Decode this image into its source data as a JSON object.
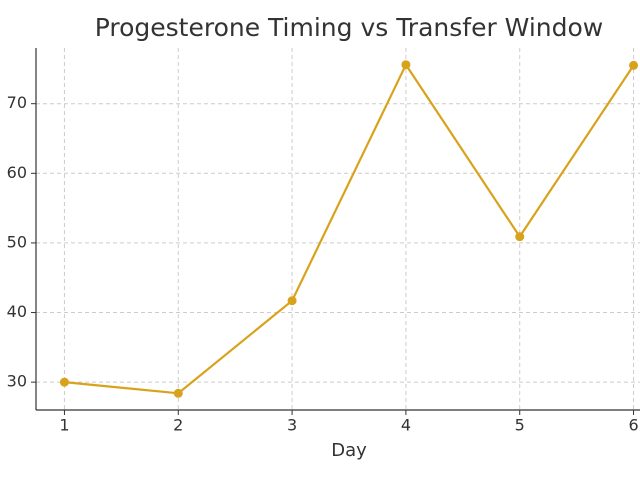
{
  "chart_data": {
    "type": "line",
    "title": "Progesterone Timing vs Transfer Window",
    "x_label": "Day",
    "x": [
      1,
      2,
      3,
      4,
      5,
      6
    ],
    "series": [
      {
        "color": "#d9a21b",
        "values": [
          30,
          28.4,
          41.7,
          75.6,
          50.9,
          75.5
        ]
      }
    ],
    "xlim": [
      0.75,
      6.25
    ],
    "xticks": [
      1,
      2,
      3,
      4,
      5,
      6
    ],
    "ylim": [
      26,
      78
    ],
    "yticks": [
      30,
      40,
      50,
      60,
      70
    ],
    "grid": true
  }
}
